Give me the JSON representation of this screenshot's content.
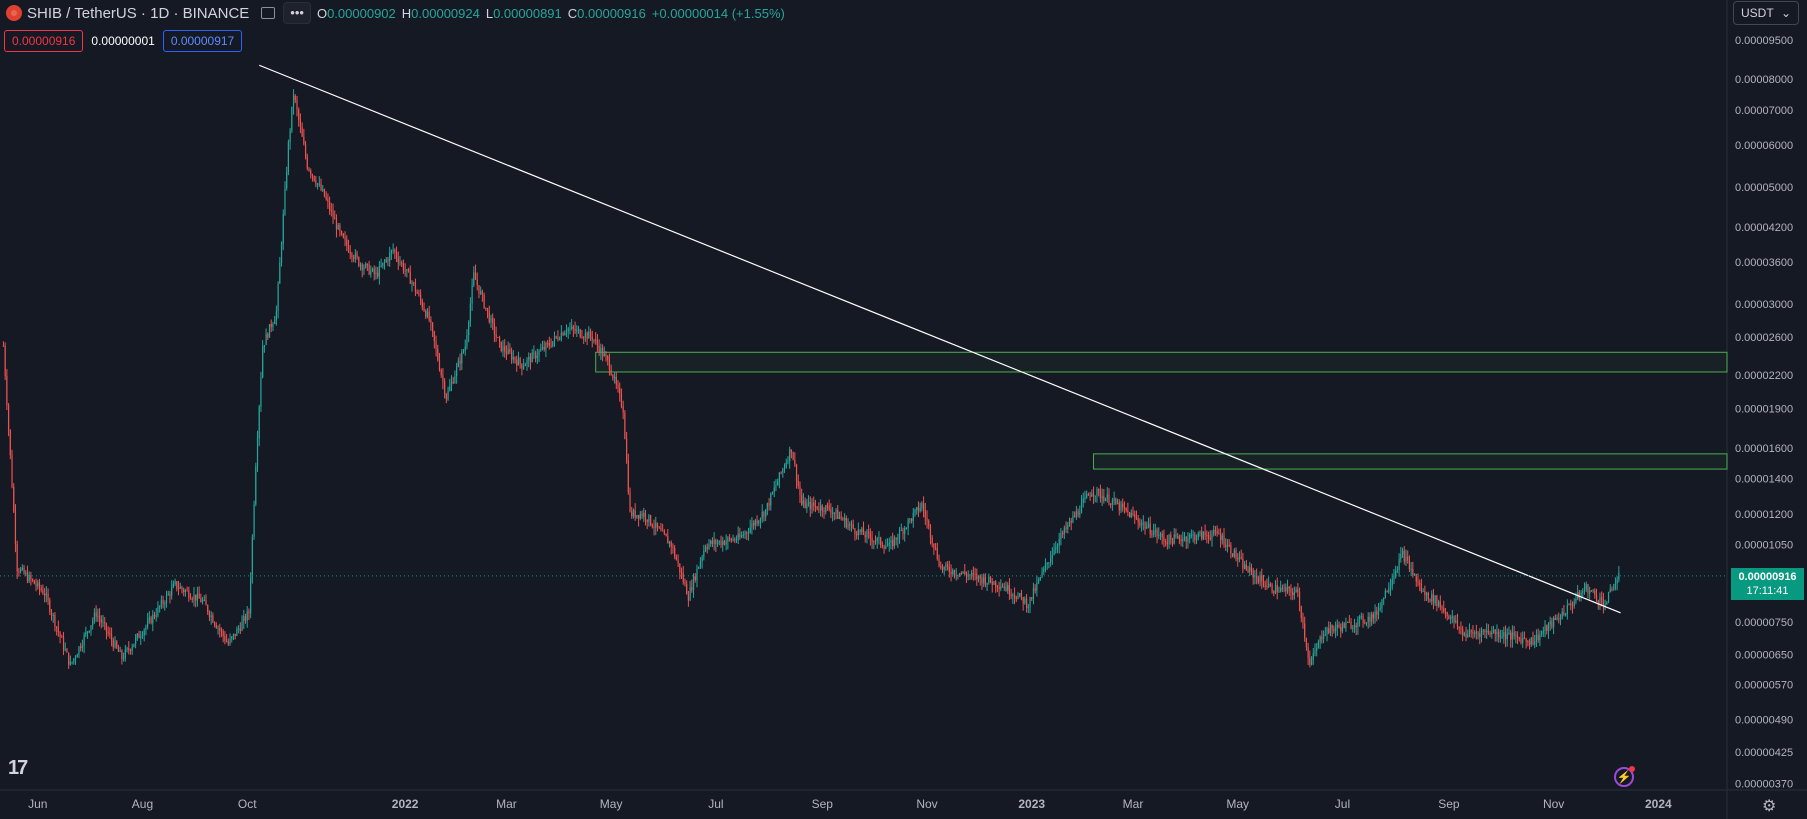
{
  "header": {
    "symbol_title": "SHIB / TetherUS · 1D · BINANCE",
    "more_label": "•••",
    "ohlc": {
      "o_label": "O",
      "o_value": "0.00000902",
      "h_label": "H",
      "h_value": "0.00000924",
      "l_label": "L",
      "l_value": "0.00000891",
      "c_label": "C",
      "c_value": "0.00000916",
      "change": "+0.00000014 (+1.55%)"
    }
  },
  "trade_tags": {
    "sell": "0.00000916",
    "spread": "0.00000001",
    "buy": "0.00000917"
  },
  "currency_select": {
    "label": "USDT",
    "icon": "chevron-down-icon"
  },
  "last_price": {
    "price": "0.00000916",
    "countdown": "17:11:41"
  },
  "icons": {
    "logo": "tradingview-logo-icon",
    "alert": "lightning-icon",
    "settings": "gear-icon"
  },
  "logo_text": "17",
  "colors": {
    "background": "#151924",
    "up": "#26a69a",
    "down": "#ef5350",
    "trendline": "#ffffff",
    "zone_border": "#4caf50",
    "last_price_badge": "#089981"
  },
  "chart_data": {
    "type": "candlestick",
    "scale": "log",
    "ylim": [
      3.4e-06,
      1.03e-05
    ],
    "y_ticks": [
      {
        "value": 9.5e-05,
        "label": "0.00009500"
      },
      {
        "value": 8e-05,
        "label": "0.00008000"
      },
      {
        "value": 7e-05,
        "label": "0.00007000"
      },
      {
        "value": 6e-05,
        "label": "0.00006000"
      },
      {
        "value": 5e-05,
        "label": "0.00005000"
      },
      {
        "value": 4.2e-05,
        "label": "0.00004200"
      },
      {
        "value": 3.6e-05,
        "label": "0.00003600"
      },
      {
        "value": 3e-05,
        "label": "0.00003000"
      },
      {
        "value": 2.6e-05,
        "label": "0.00002600"
      },
      {
        "value": 2.2e-05,
        "label": "0.00002200"
      },
      {
        "value": 1.9e-05,
        "label": "0.00001900"
      },
      {
        "value": 1.6e-05,
        "label": "0.00001600"
      },
      {
        "value": 1.4e-05,
        "label": "0.00001400"
      },
      {
        "value": 1.2e-05,
        "label": "0.00001200"
      },
      {
        "value": 1.05e-05,
        "label": "0.00001050"
      },
      {
        "value": 7.5e-06,
        "label": "0.00000750"
      },
      {
        "value": 6.5e-06,
        "label": "0.00000650"
      },
      {
        "value": 5.7e-06,
        "label": "0.00000570"
      },
      {
        "value": 4.9e-06,
        "label": "0.00000490"
      },
      {
        "value": 4.25e-06,
        "label": "0.00000425"
      },
      {
        "value": 3.7e-06,
        "label": "0.00000370"
      }
    ],
    "x_ticks": [
      {
        "date": "2021-06-01",
        "label": "Jun"
      },
      {
        "date": "2021-08-01",
        "label": "Aug"
      },
      {
        "date": "2021-10-01",
        "label": "Oct"
      },
      {
        "date": "2022-01-01",
        "label": "2022"
      },
      {
        "date": "2022-03-01",
        "label": "Mar"
      },
      {
        "date": "2022-05-01",
        "label": "May"
      },
      {
        "date": "2022-07-01",
        "label": "Jul"
      },
      {
        "date": "2022-09-01",
        "label": "Sep"
      },
      {
        "date": "2022-11-01",
        "label": "Nov"
      },
      {
        "date": "2023-01-01",
        "label": "2023"
      },
      {
        "date": "2023-03-01",
        "label": "Mar"
      },
      {
        "date": "2023-05-01",
        "label": "May"
      },
      {
        "date": "2023-07-01",
        "label": "Jul"
      },
      {
        "date": "2023-09-01",
        "label": "Sep"
      },
      {
        "date": "2023-11-01",
        "label": "Nov"
      },
      {
        "date": "2024-01-01",
        "label": "2024"
      }
    ],
    "x_range": [
      "2021-05-10",
      "2024-02-10"
    ],
    "price_path": [
      [
        "2021-05-12",
        2.5e-05
      ],
      [
        "2021-05-20",
        9.5e-06
      ],
      [
        "2021-06-05",
        8.5e-06
      ],
      [
        "2021-06-20",
        6.2e-06
      ],
      [
        "2021-07-05",
        7.8e-06
      ],
      [
        "2021-07-20",
        6.4e-06
      ],
      [
        "2021-08-05",
        7.5e-06
      ],
      [
        "2021-08-20",
        8.8e-06
      ],
      [
        "2021-09-05",
        8.2e-06
      ],
      [
        "2021-09-20",
        6.8e-06
      ],
      [
        "2021-10-02",
        7.8e-06
      ],
      [
        "2021-10-06",
        1.5e-05
      ],
      [
        "2021-10-10",
        2.5e-05
      ],
      [
        "2021-10-18",
        2.9e-05
      ],
      [
        "2021-10-25",
        6e-05
      ],
      [
        "2021-10-28",
        7.5e-05
      ],
      [
        "2021-11-05",
        5.5e-05
      ],
      [
        "2021-11-15",
        4.8e-05
      ],
      [
        "2021-11-25",
        4e-05
      ],
      [
        "2021-12-05",
        3.6e-05
      ],
      [
        "2021-12-15",
        3.4e-05
      ],
      [
        "2021-12-25",
        3.8e-05
      ],
      [
        "2022-01-05",
        3.3e-05
      ],
      [
        "2022-01-15",
        2.8e-05
      ],
      [
        "2022-01-25",
        2e-05
      ],
      [
        "2022-02-05",
        2.5e-05
      ],
      [
        "2022-02-10",
        3.4e-05
      ],
      [
        "2022-02-25",
        2.5e-05
      ],
      [
        "2022-03-10",
        2.3e-05
      ],
      [
        "2022-03-25",
        2.5e-05
      ],
      [
        "2022-04-05",
        2.7e-05
      ],
      [
        "2022-04-20",
        2.6e-05
      ],
      [
        "2022-04-30",
        2.3e-05
      ],
      [
        "2022-05-08",
        1.9e-05
      ],
      [
        "2022-05-12",
        1.2e-05
      ],
      [
        "2022-05-20",
        1.2e-05
      ],
      [
        "2022-06-05",
        1.05e-05
      ],
      [
        "2022-06-15",
        8.4e-06
      ],
      [
        "2022-06-25",
        1.05e-05
      ],
      [
        "2022-07-15",
        1.08e-05
      ],
      [
        "2022-07-30",
        1.22e-05
      ],
      [
        "2022-08-14",
        1.6e-05
      ],
      [
        "2022-08-20",
        1.25e-05
      ],
      [
        "2022-09-05",
        1.23e-05
      ],
      [
        "2022-09-20",
        1.12e-05
      ],
      [
        "2022-10-10",
        1.04e-05
      ],
      [
        "2022-10-29",
        1.25e-05
      ],
      [
        "2022-11-09",
        9.5e-06
      ],
      [
        "2022-11-25",
        9.2e-06
      ],
      [
        "2022-12-15",
        8.8e-06
      ],
      [
        "2022-12-30",
        8.1e-06
      ],
      [
        "2023-01-15",
        1.05e-05
      ],
      [
        "2023-02-05",
        1.33e-05
      ],
      [
        "2023-02-15",
        1.28e-05
      ],
      [
        "2023-03-05",
        1.16e-05
      ],
      [
        "2023-03-20",
        1.07e-05
      ],
      [
        "2023-04-05",
        1.09e-05
      ],
      [
        "2023-04-20",
        1.1e-05
      ],
      [
        "2023-05-05",
        9.5e-06
      ],
      [
        "2023-05-20",
        8.7e-06
      ],
      [
        "2023-06-05",
        8.5e-06
      ],
      [
        "2023-06-12",
        6.2e-06
      ],
      [
        "2023-06-20",
        7.2e-06
      ],
      [
        "2023-07-05",
        7.4e-06
      ],
      [
        "2023-07-20",
        7.7e-06
      ],
      [
        "2023-08-05",
        1.01e-05
      ],
      [
        "2023-08-17",
        8.5e-06
      ],
      [
        "2023-08-25",
        8.2e-06
      ],
      [
        "2023-09-10",
        7.1e-06
      ],
      [
        "2023-09-25",
        7.2e-06
      ],
      [
        "2023-10-10",
        7e-06
      ],
      [
        "2023-10-20",
        6.9e-06
      ],
      [
        "2023-11-05",
        7.7e-06
      ],
      [
        "2023-11-20",
        8.7e-06
      ],
      [
        "2023-12-01",
        8.1e-06
      ],
      [
        "2023-12-06",
        8.8e-06
      ],
      [
        "2023-12-09",
        9.16e-06
      ]
    ],
    "trendline": [
      [
        "2021-10-08",
        8.5e-05
      ],
      [
        "2023-12-10",
        7.8e-06
      ]
    ],
    "zones": [
      {
        "start": "2022-04-22",
        "end": "2024-02-10",
        "low": 2.23e-05,
        "high": 2.43e-05
      },
      {
        "start": "2023-02-06",
        "end": "2024-02-10",
        "low": 1.46e-05,
        "high": 1.56e-05
      }
    ],
    "last_price": 9.16e-06
  }
}
